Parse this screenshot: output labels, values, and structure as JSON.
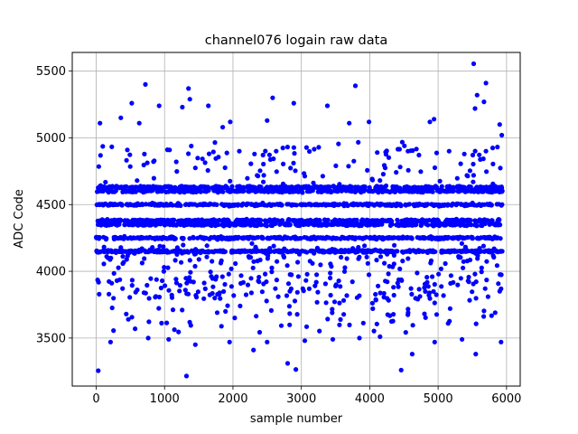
{
  "chart_data": {
    "type": "scatter",
    "title": "channel076 logain raw data",
    "xlabel": "sample number",
    "ylabel": "ADC Code",
    "xlim": [
      -350,
      6200
    ],
    "ylim": [
      3140,
      5640
    ],
    "x_ticks": [
      0,
      1000,
      2000,
      3000,
      4000,
      5000,
      6000
    ],
    "x_tick_labels": [
      "0",
      "1000",
      "2000",
      "3000",
      "4000",
      "5000",
      "6000"
    ],
    "y_ticks": [
      3500,
      4000,
      4500,
      5000,
      5500
    ],
    "y_tick_labels": [
      "3500",
      "4000",
      "4500",
      "5000",
      "5500"
    ],
    "grid": true,
    "marker_color": "#0000ff",
    "n_samples": 5940,
    "bands": [
      4150,
      4250,
      4350,
      4380,
      4500,
      4600,
      4630
    ],
    "series": [
      {
        "points": [
          [
            30,
            3255
          ],
          [
            1320,
            3215
          ],
          [
            2920,
            3265
          ],
          [
            4460,
            3260
          ],
          [
            5550,
            3380
          ],
          [
            210,
            3470
          ],
          [
            470,
            3640
          ],
          [
            760,
            3500
          ],
          [
            1060,
            3490
          ],
          [
            1450,
            3450
          ],
          [
            1950,
            3470
          ],
          [
            2300,
            3410
          ],
          [
            2500,
            3470
          ],
          [
            2800,
            3310
          ],
          [
            3050,
            3480
          ],
          [
            3460,
            3490
          ],
          [
            3850,
            3500
          ],
          [
            4150,
            3510
          ],
          [
            4620,
            3380
          ],
          [
            4950,
            3470
          ],
          [
            5350,
            3490
          ],
          [
            5920,
            3470
          ],
          [
            720,
            5400
          ],
          [
            1350,
            5370
          ],
          [
            2580,
            5300
          ],
          [
            3790,
            5390
          ],
          [
            5520,
            5555
          ],
          [
            5700,
            5410
          ],
          [
            1370,
            5290
          ],
          [
            520,
            5260
          ],
          [
            920,
            5240
          ],
          [
            1260,
            5230
          ],
          [
            2890,
            5260
          ],
          [
            3380,
            5240
          ],
          [
            5570,
            5320
          ],
          [
            5540,
            5220
          ],
          [
            5670,
            5270
          ],
          [
            1640,
            5240
          ],
          [
            2500,
            5130
          ],
          [
            1960,
            5120
          ],
          [
            360,
            5150
          ],
          [
            55,
            5110
          ],
          [
            4940,
            5140
          ],
          [
            5900,
            5100
          ],
          [
            3700,
            5110
          ],
          [
            3990,
            5120
          ],
          [
            4880,
            5120
          ],
          [
            5930,
            5020
          ],
          [
            630,
            5110
          ],
          [
            1850,
            5080
          ]
        ]
      }
    ]
  }
}
